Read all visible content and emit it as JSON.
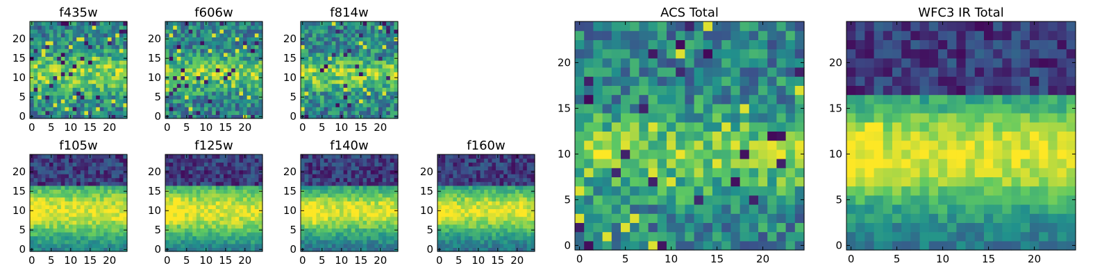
{
  "colormap": {
    "name": "viridis",
    "stops": [
      "#440154",
      "#3b528b",
      "#21918c",
      "#5ec962",
      "#fde725"
    ]
  },
  "chart_data": [
    {
      "type": "heatmap",
      "title": "f435w",
      "grid": [
        25,
        25
      ],
      "xticks": [
        0,
        5,
        10,
        15,
        20
      ],
      "yticks": [
        0,
        5,
        10,
        15,
        20
      ],
      "pattern": "noisy",
      "band_center": 11,
      "band_halfwidth": 5,
      "top_dark_from": 30,
      "seed": 11
    },
    {
      "type": "heatmap",
      "title": "f606w",
      "grid": [
        25,
        25
      ],
      "xticks": [
        0,
        5,
        10,
        15,
        20
      ],
      "yticks": [
        0,
        5,
        10,
        15,
        20
      ],
      "pattern": "noisy",
      "band_center": 11,
      "band_halfwidth": 4,
      "top_dark_from": 30,
      "seed": 23
    },
    {
      "type": "heatmap",
      "title": "f814w",
      "grid": [
        25,
        25
      ],
      "xticks": [
        0,
        5,
        10,
        15,
        20
      ],
      "yticks": [
        0,
        5,
        10,
        15,
        20
      ],
      "pattern": "noisy",
      "band_center": 11,
      "band_halfwidth": 4,
      "top_dark_from": 30,
      "seed": 37
    },
    {
      "type": "heatmap",
      "title": "f105w",
      "grid": [
        25,
        25
      ],
      "xticks": [
        0,
        5,
        10,
        15,
        20
      ],
      "yticks": [
        0,
        5,
        10,
        15,
        20
      ],
      "pattern": "smooth",
      "band_center": 10,
      "band_halfwidth": 7,
      "top_dark_from": 17,
      "seed": 41
    },
    {
      "type": "heatmap",
      "title": "f125w",
      "grid": [
        25,
        25
      ],
      "xticks": [
        0,
        5,
        10,
        15,
        20
      ],
      "yticks": [
        0,
        5,
        10,
        15,
        20
      ],
      "pattern": "smooth",
      "band_center": 10,
      "band_halfwidth": 7,
      "top_dark_from": 17,
      "seed": 53
    },
    {
      "type": "heatmap",
      "title": "f140w",
      "grid": [
        25,
        25
      ],
      "xticks": [
        0,
        5,
        10,
        15,
        20
      ],
      "yticks": [
        0,
        5,
        10,
        15,
        20
      ],
      "pattern": "smooth",
      "band_center": 10,
      "band_halfwidth": 6,
      "top_dark_from": 17,
      "seed": 67
    },
    {
      "type": "heatmap",
      "title": "f160w",
      "grid": [
        25,
        25
      ],
      "xticks": [
        0,
        5,
        10,
        15,
        20
      ],
      "yticks": [
        0,
        5,
        10,
        15,
        20
      ],
      "pattern": "smooth",
      "band_center": 10,
      "band_halfwidth": 6,
      "top_dark_from": 17,
      "seed": 79
    },
    {
      "type": "heatmap",
      "title": "ACS Total",
      "grid": [
        25,
        25
      ],
      "xticks": [
        0,
        5,
        10,
        15,
        20
      ],
      "yticks": [
        0,
        5,
        10,
        15,
        20
      ],
      "pattern": "noisy",
      "band_center": 10,
      "band_halfwidth": 4,
      "top_dark_from": 30,
      "seed": 97
    },
    {
      "type": "heatmap",
      "title": "WFC3 IR Total",
      "grid": [
        25,
        25
      ],
      "xticks": [
        0,
        5,
        10,
        15,
        20
      ],
      "yticks": [
        0,
        5,
        10,
        15,
        20
      ],
      "pattern": "smooth",
      "band_center": 10,
      "band_halfwidth": 6,
      "top_dark_from": 17,
      "seed": 113
    }
  ]
}
